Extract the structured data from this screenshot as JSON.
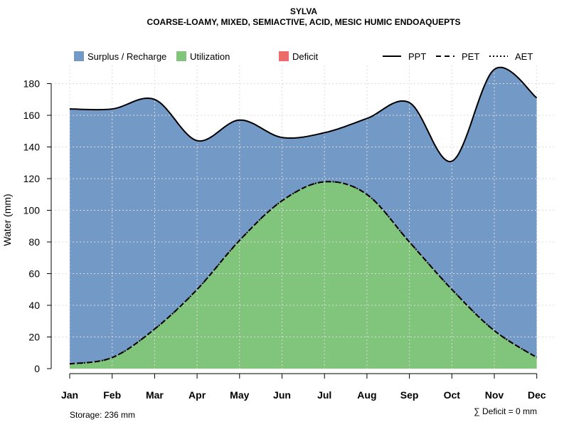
{
  "chart_data": {
    "type": "area",
    "title": "SYLVA",
    "subtitle": "COARSE-LOAMY, MIXED, SEMIACTIVE, ACID, MESIC HUMIC ENDOAQUEPTS",
    "xlabel": "",
    "ylabel": "Water (mm)",
    "ylim": [
      0,
      192
    ],
    "yticks": [
      0,
      20,
      40,
      60,
      80,
      100,
      120,
      140,
      160,
      180
    ],
    "grid": true,
    "categories": [
      "Jan",
      "Feb",
      "Mar",
      "Apr",
      "May",
      "Jun",
      "Jul",
      "Aug",
      "Sep",
      "Oct",
      "Nov",
      "Dec"
    ],
    "series": [
      {
        "name": "PPT",
        "style": "solid",
        "values": [
          164,
          164,
          170,
          144,
          157,
          146,
          149,
          158,
          168,
          131,
          189,
          171
        ]
      },
      {
        "name": "PET",
        "style": "dashed",
        "values": [
          3,
          7,
          25,
          50,
          81,
          106,
          118,
          110,
          80,
          50,
          24,
          7
        ]
      },
      {
        "name": "AET",
        "style": "dotted",
        "values": [
          3,
          7,
          25,
          50,
          81,
          106,
          118,
          110,
          80,
          50,
          24,
          7
        ]
      }
    ],
    "legend": {
      "position": "top",
      "fills": [
        {
          "label": "Surplus / Recharge",
          "color": "#7399C6"
        },
        {
          "label": "Utilization",
          "color": "#80C57B"
        },
        {
          "label": "Deficit",
          "color": "#EC6B6B"
        }
      ],
      "lines": [
        {
          "label": "PPT",
          "style": "solid"
        },
        {
          "label": "PET",
          "style": "dashed"
        },
        {
          "label": "AET",
          "style": "dotted"
        }
      ]
    },
    "annotations": {
      "storage": "Storage: 236 mm",
      "deficit": "∑ Deficit = 0 mm"
    }
  }
}
